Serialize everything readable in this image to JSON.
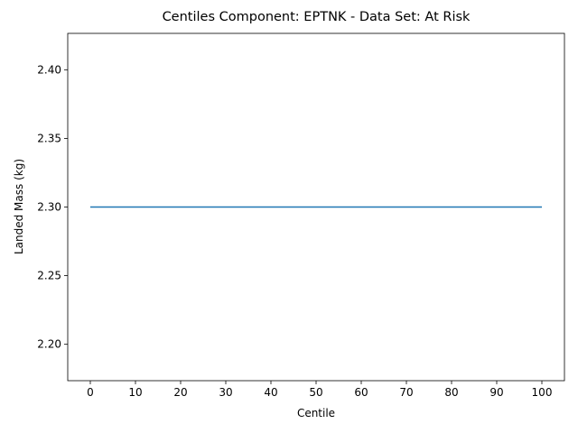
{
  "chart_data": {
    "type": "line",
    "title": "Centiles Component: EPTNK - Data Set: At Risk",
    "x_label": "Centile",
    "y_label": "Landed Mass (kg)",
    "x": [
      0,
      10,
      20,
      30,
      40,
      50,
      60,
      70,
      80,
      90,
      100
    ],
    "series": [
      {
        "name": "Landed Mass",
        "color": "#1f77b4",
        "values": [
          2.3,
          2.3,
          2.3,
          2.3,
          2.3,
          2.3,
          2.3,
          2.3,
          2.3,
          2.3,
          2.3
        ]
      }
    ],
    "xlim": [
      -5,
      105
    ],
    "xticks": [
      0,
      10,
      20,
      30,
      40,
      50,
      60,
      70,
      80,
      90,
      100
    ],
    "ylim": [
      2.1735,
      2.4265
    ],
    "yticks": [
      {
        "value": 2.2,
        "label": "2.20"
      },
      {
        "value": 2.25,
        "label": "2.25"
      },
      {
        "value": 2.3,
        "label": "2.30"
      },
      {
        "value": 2.35,
        "label": "2.35"
      },
      {
        "value": 2.4,
        "label": "2.40"
      }
    ],
    "grid": false
  }
}
